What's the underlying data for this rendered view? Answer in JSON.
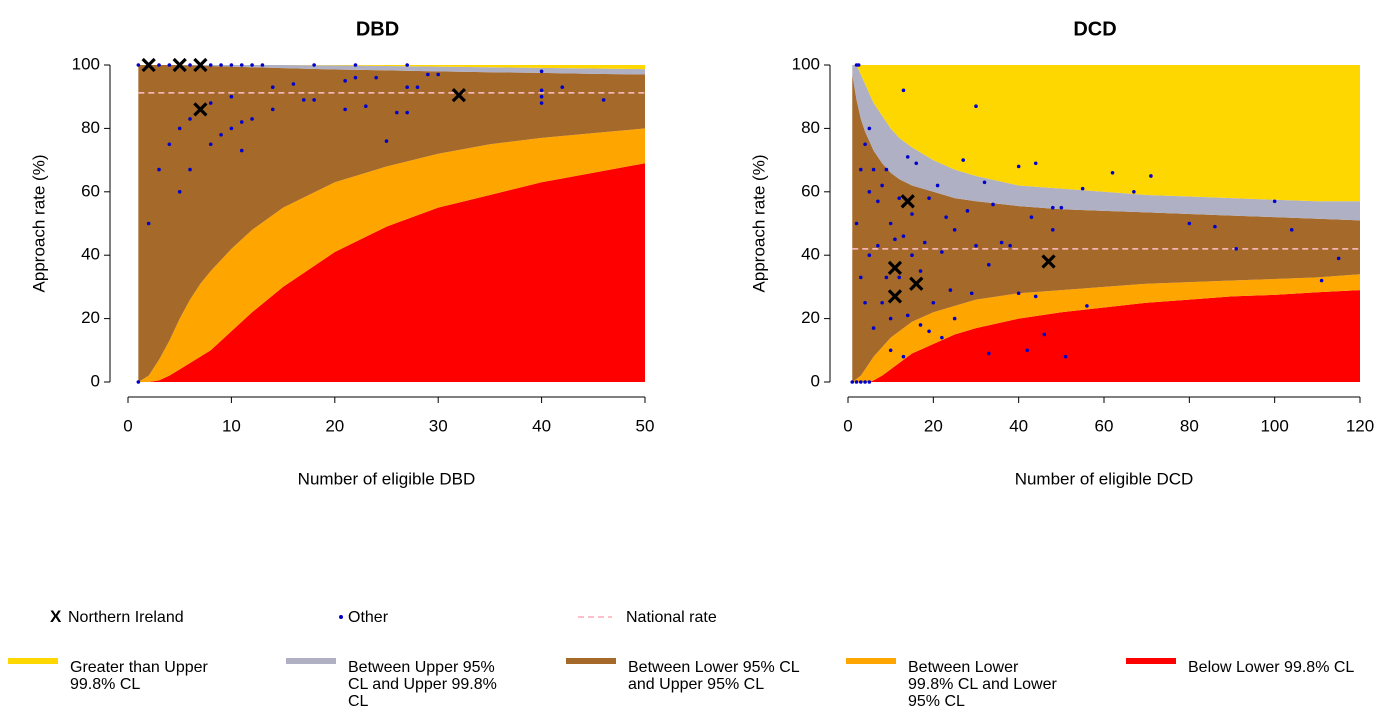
{
  "chart_data": [
    {
      "type": "funnel",
      "title": "DBD",
      "x_label": "Number of eligible DBD",
      "y_label": "Approach rate (%)",
      "xlim": [
        0,
        50
      ],
      "ylim": [
        0,
        100
      ],
      "xticks": [
        0,
        10,
        20,
        30,
        40,
        50
      ],
      "yticks": [
        0,
        20,
        40,
        60,
        80,
        100
      ],
      "national_rate": 91.2,
      "limits": {
        "x": [
          1,
          2,
          3,
          4,
          5,
          6,
          7,
          8,
          10,
          12,
          15,
          20,
          25,
          30,
          35,
          40,
          45,
          50
        ],
        "lower_998": [
          0,
          0,
          0.5,
          2,
          4,
          6,
          8,
          10,
          16,
          22,
          30,
          41,
          49,
          55,
          59,
          63,
          66,
          69
        ],
        "lower_95": [
          0,
          2,
          7,
          13,
          20,
          26,
          31,
          35,
          42,
          48,
          55,
          63,
          68,
          72,
          75,
          77,
          78.5,
          80
        ],
        "upper_95": [
          100,
          100,
          100,
          100,
          100,
          99.9,
          99.8,
          99.7,
          99.5,
          99.3,
          99,
          98.6,
          98.3,
          98,
          97.7,
          97.5,
          97.2,
          97
        ],
        "upper_998": [
          100,
          100,
          100,
          100,
          100,
          100,
          100,
          100,
          100,
          100,
          100,
          99.9,
          99.7,
          99.5,
          99.3,
          99.1,
          98.9,
          98.7
        ]
      },
      "northern_ireland": {
        "x": [
          2,
          5,
          7,
          7,
          32
        ],
        "values": [
          100,
          100,
          100,
          86,
          90.5
        ]
      },
      "other": {
        "x": [
          1,
          2,
          1,
          3,
          4,
          6,
          8,
          9,
          10,
          11,
          12,
          13,
          3,
          4,
          5,
          5,
          6,
          6,
          8,
          8,
          9,
          10,
          10,
          11,
          11,
          12,
          14,
          14,
          16,
          17,
          18,
          18,
          21,
          21,
          22,
          22,
          23,
          24,
          25,
          26,
          27,
          27,
          27,
          28,
          29,
          30,
          40,
          40,
          40,
          40,
          42,
          46
        ],
        "values": [
          0,
          50,
          100,
          100,
          100,
          100,
          100,
          100,
          100,
          100,
          100,
          100,
          67,
          75,
          60,
          80,
          67,
          83,
          88,
          75,
          78,
          80,
          90,
          73,
          82,
          83,
          86,
          93,
          94,
          89,
          89,
          100,
          86,
          95,
          96,
          100,
          87,
          96,
          76,
          85,
          85,
          93,
          100,
          93,
          97,
          97,
          88,
          90,
          92,
          98,
          93,
          89
        ]
      }
    },
    {
      "type": "funnel",
      "title": "DCD",
      "x_label": "Number of eligible DCD",
      "y_label": "Approach rate (%)",
      "xlim": [
        0,
        120
      ],
      "ylim": [
        0,
        100
      ],
      "xticks": [
        0,
        20,
        40,
        60,
        80,
        100,
        120
      ],
      "yticks": [
        0,
        20,
        40,
        60,
        80,
        100
      ],
      "national_rate": 42,
      "limits": {
        "x": [
          1,
          2,
          3,
          4,
          5,
          6,
          8,
          10,
          12,
          15,
          20,
          25,
          30,
          40,
          50,
          60,
          70,
          80,
          90,
          100,
          110,
          120
        ],
        "lower_998": [
          0,
          0,
          0,
          0,
          0,
          0.5,
          2,
          4,
          6,
          9,
          12,
          15,
          17,
          20,
          22,
          23.5,
          25,
          26,
          27,
          27.5,
          28.3,
          29
        ],
        "lower_95": [
          0,
          1,
          2,
          4,
          6,
          8,
          11,
          14,
          16,
          19,
          22,
          24,
          26,
          28,
          29,
          30,
          31,
          31.5,
          32,
          32.5,
          33,
          34
        ],
        "upper_95": [
          97,
          89,
          83,
          79,
          76,
          73,
          69,
          66,
          64,
          62,
          60,
          58,
          57,
          55.5,
          54.5,
          54,
          53.5,
          53,
          52.5,
          52,
          51.5,
          51
        ],
        "upper_998": [
          100,
          100,
          97,
          94,
          91,
          88,
          84,
          80,
          77,
          74,
          70,
          67,
          65,
          62,
          61,
          60,
          59,
          58.5,
          58,
          57.5,
          57,
          57
        ]
      },
      "northern_ireland": {
        "x": [
          14,
          11,
          11,
          16,
          47
        ],
        "values": [
          57,
          36,
          27,
          31,
          38
        ]
      },
      "other": {
        "x": [
          1,
          2,
          3,
          4,
          5,
          2,
          2.5,
          2,
          3,
          3,
          4,
          4,
          5,
          5,
          5,
          6,
          6,
          7,
          7,
          8,
          8,
          9,
          9,
          10,
          10,
          10,
          11,
          12,
          12,
          13,
          13,
          13,
          14,
          14,
          15,
          15,
          16,
          17,
          17,
          18,
          19,
          19,
          20,
          21,
          22,
          22,
          23,
          24,
          25,
          25,
          27,
          28,
          29,
          30,
          30,
          32,
          33,
          33,
          34,
          36,
          38,
          40,
          40,
          42,
          43,
          44,
          44,
          46,
          48,
          48,
          50,
          51,
          55,
          56,
          62,
          67,
          71,
          80,
          86,
          91,
          100,
          104,
          111,
          115
        ],
        "values": [
          0,
          0,
          0,
          0,
          0,
          100,
          100,
          50,
          33,
          67,
          75,
          25,
          80,
          60,
          40,
          17,
          67,
          57,
          43,
          62,
          25,
          33,
          67,
          50,
          20,
          10,
          45,
          33,
          58,
          92,
          46,
          8,
          21,
          71,
          40,
          53,
          69,
          35,
          18,
          44,
          16,
          58,
          25,
          62,
          41,
          14,
          52,
          29,
          48,
          20,
          70,
          54,
          28,
          87,
          43,
          63,
          37,
          9,
          56,
          44,
          43,
          68,
          28,
          10,
          52,
          69,
          27,
          15,
          55,
          48,
          55,
          8,
          61,
          24,
          66,
          60,
          65,
          50,
          49,
          42,
          57,
          48,
          32,
          39
        ]
      }
    }
  ],
  "legend": {
    "markers": [
      {
        "name": "Northern Ireland",
        "symbol": "X"
      },
      {
        "name": "Other"
      },
      {
        "name": "National rate"
      }
    ],
    "bands": [
      {
        "name": "Greater than Upper 99.8% CL",
        "color": "#FFD700"
      },
      {
        "name": "Between Upper 95% CL and Upper 99.8% CL",
        "color": "#B0B0C4"
      },
      {
        "name": "Between Lower 95% CL and Upper 95% CL",
        "color": "#A5692A"
      },
      {
        "name": "Between Lower 99.8% CL and Lower 95% CL",
        "color": "#FFA500"
      },
      {
        "name": "Below Lower 99.8% CL",
        "color": "#FF0000"
      }
    ]
  }
}
